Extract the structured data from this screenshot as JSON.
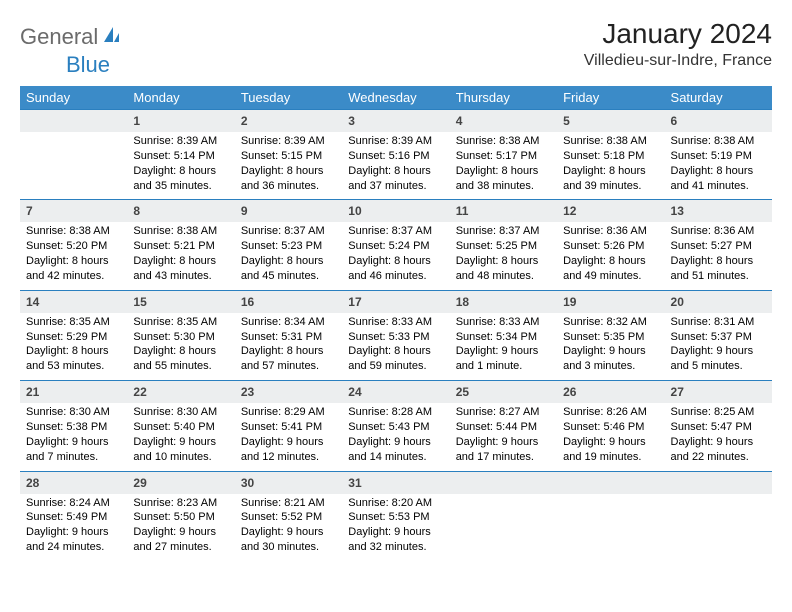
{
  "logo": {
    "text1": "General",
    "text2": "Blue"
  },
  "title": "January 2024",
  "location": "Villedieu-sur-Indre, France",
  "colors": {
    "header_bg": "#3b8bc8",
    "header_text": "#ffffff",
    "daynum_bg": "#eceeef",
    "cell_border": "#2a7fbf",
    "logo_gray": "#6b6b6b",
    "logo_blue": "#2a7fbf",
    "page_bg": "#ffffff"
  },
  "day_headers": [
    "Sunday",
    "Monday",
    "Tuesday",
    "Wednesday",
    "Thursday",
    "Friday",
    "Saturday"
  ],
  "weeks": [
    [
      null,
      {
        "n": "1",
        "sr": "8:39 AM",
        "ss": "5:14 PM",
        "dl": "8 hours and 35 minutes."
      },
      {
        "n": "2",
        "sr": "8:39 AM",
        "ss": "5:15 PM",
        "dl": "8 hours and 36 minutes."
      },
      {
        "n": "3",
        "sr": "8:39 AM",
        "ss": "5:16 PM",
        "dl": "8 hours and 37 minutes."
      },
      {
        "n": "4",
        "sr": "8:38 AM",
        "ss": "5:17 PM",
        "dl": "8 hours and 38 minutes."
      },
      {
        "n": "5",
        "sr": "8:38 AM",
        "ss": "5:18 PM",
        "dl": "8 hours and 39 minutes."
      },
      {
        "n": "6",
        "sr": "8:38 AM",
        "ss": "5:19 PM",
        "dl": "8 hours and 41 minutes."
      }
    ],
    [
      {
        "n": "7",
        "sr": "8:38 AM",
        "ss": "5:20 PM",
        "dl": "8 hours and 42 minutes."
      },
      {
        "n": "8",
        "sr": "8:38 AM",
        "ss": "5:21 PM",
        "dl": "8 hours and 43 minutes."
      },
      {
        "n": "9",
        "sr": "8:37 AM",
        "ss": "5:23 PM",
        "dl": "8 hours and 45 minutes."
      },
      {
        "n": "10",
        "sr": "8:37 AM",
        "ss": "5:24 PM",
        "dl": "8 hours and 46 minutes."
      },
      {
        "n": "11",
        "sr": "8:37 AM",
        "ss": "5:25 PM",
        "dl": "8 hours and 48 minutes."
      },
      {
        "n": "12",
        "sr": "8:36 AM",
        "ss": "5:26 PM",
        "dl": "8 hours and 49 minutes."
      },
      {
        "n": "13",
        "sr": "8:36 AM",
        "ss": "5:27 PM",
        "dl": "8 hours and 51 minutes."
      }
    ],
    [
      {
        "n": "14",
        "sr": "8:35 AM",
        "ss": "5:29 PM",
        "dl": "8 hours and 53 minutes."
      },
      {
        "n": "15",
        "sr": "8:35 AM",
        "ss": "5:30 PM",
        "dl": "8 hours and 55 minutes."
      },
      {
        "n": "16",
        "sr": "8:34 AM",
        "ss": "5:31 PM",
        "dl": "8 hours and 57 minutes."
      },
      {
        "n": "17",
        "sr": "8:33 AM",
        "ss": "5:33 PM",
        "dl": "8 hours and 59 minutes."
      },
      {
        "n": "18",
        "sr": "8:33 AM",
        "ss": "5:34 PM",
        "dl": "9 hours and 1 minute."
      },
      {
        "n": "19",
        "sr": "8:32 AM",
        "ss": "5:35 PM",
        "dl": "9 hours and 3 minutes."
      },
      {
        "n": "20",
        "sr": "8:31 AM",
        "ss": "5:37 PM",
        "dl": "9 hours and 5 minutes."
      }
    ],
    [
      {
        "n": "21",
        "sr": "8:30 AM",
        "ss": "5:38 PM",
        "dl": "9 hours and 7 minutes."
      },
      {
        "n": "22",
        "sr": "8:30 AM",
        "ss": "5:40 PM",
        "dl": "9 hours and 10 minutes."
      },
      {
        "n": "23",
        "sr": "8:29 AM",
        "ss": "5:41 PM",
        "dl": "9 hours and 12 minutes."
      },
      {
        "n": "24",
        "sr": "8:28 AM",
        "ss": "5:43 PM",
        "dl": "9 hours and 14 minutes."
      },
      {
        "n": "25",
        "sr": "8:27 AM",
        "ss": "5:44 PM",
        "dl": "9 hours and 17 minutes."
      },
      {
        "n": "26",
        "sr": "8:26 AM",
        "ss": "5:46 PM",
        "dl": "9 hours and 19 minutes."
      },
      {
        "n": "27",
        "sr": "8:25 AM",
        "ss": "5:47 PM",
        "dl": "9 hours and 22 minutes."
      }
    ],
    [
      {
        "n": "28",
        "sr": "8:24 AM",
        "ss": "5:49 PM",
        "dl": "9 hours and 24 minutes."
      },
      {
        "n": "29",
        "sr": "8:23 AM",
        "ss": "5:50 PM",
        "dl": "9 hours and 27 minutes."
      },
      {
        "n": "30",
        "sr": "8:21 AM",
        "ss": "5:52 PM",
        "dl": "9 hours and 30 minutes."
      },
      {
        "n": "31",
        "sr": "8:20 AM",
        "ss": "5:53 PM",
        "dl": "9 hours and 32 minutes."
      },
      null,
      null,
      null
    ]
  ],
  "labels": {
    "sunrise": "Sunrise: ",
    "sunset": "Sunset: ",
    "daylight": "Daylight: "
  }
}
